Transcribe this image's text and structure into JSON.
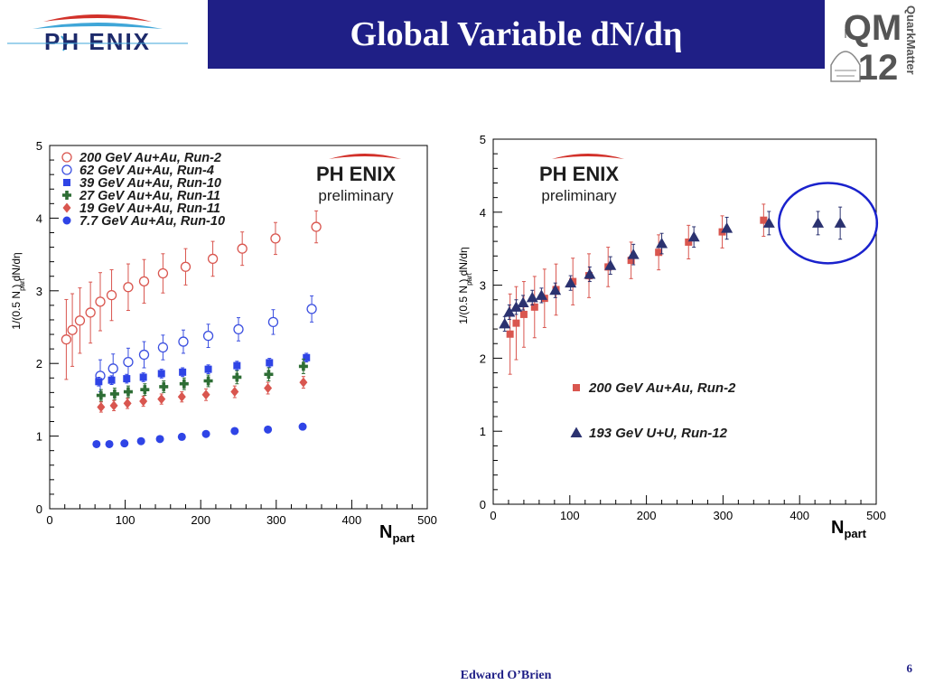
{
  "slide": {
    "title": "Global Variable dN/dη",
    "author": "Edward O’Brien",
    "page": "6"
  },
  "logos": {
    "left": {
      "text": "PH ENIX",
      "icon": "phenix-firebird-icon"
    },
    "right": {
      "line1": "QM",
      "line2": "12",
      "vertical": "QuarkMatter",
      "icon": "capitol-dome-icon"
    }
  },
  "colors": {
    "title_bg": "#1f1f86",
    "circle_highlight": "#1a22cc"
  },
  "chart_data": [
    {
      "type": "scatter",
      "xlabel_main": "N",
      "xlabel_sub": "part",
      "ylabel": "1/(0.5 N   ) dN/dη",
      "ylabel_sub": "part",
      "xlim": [
        0,
        500
      ],
      "ylim": [
        0,
        5
      ],
      "xticks": [
        "0",
        "100",
        "200",
        "300",
        "400",
        "500"
      ],
      "yticks": [
        "0",
        "1",
        "2",
        "3",
        "4",
        "5"
      ],
      "grid": false,
      "legend_position": "top-left",
      "watermark": {
        "line1": "PH ENIX",
        "line2": "preliminary"
      },
      "series": [
        {
          "name": "200 GeV Au+Au, Run-2",
          "marker": "open-circle",
          "color": "#d9564f",
          "x": [
            22,
            30,
            40,
            54,
            67,
            82,
            104,
            125,
            150,
            180,
            216,
            255,
            299,
            353
          ],
          "y": [
            2.33,
            2.46,
            2.59,
            2.7,
            2.85,
            2.94,
            3.05,
            3.13,
            3.24,
            3.33,
            3.44,
            3.58,
            3.72,
            3.88
          ],
          "err": [
            0.55,
            0.5,
            0.45,
            0.42,
            0.4,
            0.35,
            0.32,
            0.3,
            0.27,
            0.25,
            0.24,
            0.23,
            0.22,
            0.22
          ]
        },
        {
          "name": "62 GeV Au+Au, Run-4",
          "marker": "open-circle",
          "color": "#3b4fe0",
          "x": [
            67,
            84,
            104,
            125,
            150,
            177,
            210,
            250,
            296,
            347
          ],
          "y": [
            1.83,
            1.93,
            2.02,
            2.12,
            2.22,
            2.3,
            2.38,
            2.47,
            2.57,
            2.75
          ],
          "err": [
            0.22,
            0.2,
            0.19,
            0.18,
            0.17,
            0.16,
            0.16,
            0.16,
            0.17,
            0.18
          ]
        },
        {
          "name": "39 GeV Au+Au, Run-10",
          "marker": "square",
          "color": "#2f44e6",
          "x": [
            65,
            82,
            102,
            124,
            148,
            176,
            210,
            248,
            291,
            340
          ],
          "y": [
            1.75,
            1.77,
            1.79,
            1.81,
            1.86,
            1.88,
            1.92,
            1.97,
            2.01,
            2.08
          ],
          "err": [
            0.06,
            0.06,
            0.06,
            0.06,
            0.06,
            0.06,
            0.06,
            0.06,
            0.06,
            0.06
          ]
        },
        {
          "name": "27 GeV Au+Au, Run-11",
          "marker": "plus",
          "color": "#2e6e35",
          "x": [
            68,
            86,
            104,
            126,
            151,
            178,
            210,
            248,
            290,
            336
          ],
          "y": [
            1.56,
            1.58,
            1.61,
            1.64,
            1.68,
            1.72,
            1.76,
            1.81,
            1.85,
            1.96
          ],
          "err": [
            0.08,
            0.08,
            0.08,
            0.08,
            0.08,
            0.08,
            0.08,
            0.09,
            0.09,
            0.1
          ]
        },
        {
          "name": "19 GeV Au+Au, Run-11",
          "marker": "diamond",
          "color": "#d9564f",
          "x": [
            68,
            85,
            103,
            124,
            148,
            175,
            207,
            245,
            289,
            336
          ],
          "y": [
            1.4,
            1.42,
            1.45,
            1.48,
            1.51,
            1.54,
            1.57,
            1.61,
            1.66,
            1.74
          ],
          "err": [
            0.07,
            0.07,
            0.07,
            0.07,
            0.07,
            0.07,
            0.08,
            0.08,
            0.08,
            0.08
          ]
        },
        {
          "name": "7.7 GeV Au+Au, Run-10",
          "marker": "filled-circle",
          "color": "#2f44e6",
          "x": [
            62,
            79,
            99,
            121,
            146,
            175,
            207,
            245,
            289,
            335
          ],
          "y": [
            0.89,
            0.89,
            0.9,
            0.93,
            0.96,
            0.99,
            1.03,
            1.07,
            1.09,
            1.13
          ],
          "err": [
            0.03,
            0.03,
            0.03,
            0.03,
            0.03,
            0.03,
            0.03,
            0.04,
            0.04,
            0.04
          ]
        }
      ]
    },
    {
      "type": "scatter",
      "xlabel_main": "N",
      "xlabel_sub": "part",
      "ylabel": "1/(0.5 N   ) dN/dη",
      "ylabel_sub": "part",
      "xlim": [
        0,
        500
      ],
      "ylim": [
        0,
        5
      ],
      "xticks": [
        "0",
        "100",
        "200",
        "300",
        "400",
        "500"
      ],
      "yticks": [
        "0",
        "1",
        "2",
        "3",
        "4",
        "5"
      ],
      "grid": false,
      "legend_position": "bottom-center",
      "watermark": {
        "line1": "PH ENIX",
        "line2": "preliminary"
      },
      "highlight": {
        "shape": "ellipse",
        "cx": 437,
        "cy": 3.85,
        "rx": 64,
        "ry": 0.55
      },
      "series": [
        {
          "name": "200 GeV Au+Au, Run-2",
          "marker": "square",
          "color": "#d9564f",
          "x": [
            22,
            30,
            40,
            54,
            67,
            82,
            104,
            125,
            150,
            180,
            216,
            255,
            299,
            353
          ],
          "y": [
            2.33,
            2.48,
            2.6,
            2.7,
            2.82,
            2.94,
            3.05,
            3.13,
            3.25,
            3.34,
            3.45,
            3.59,
            3.73,
            3.89
          ],
          "err": [
            0.55,
            0.5,
            0.45,
            0.42,
            0.4,
            0.35,
            0.32,
            0.3,
            0.27,
            0.25,
            0.24,
            0.23,
            0.22,
            0.22
          ]
        },
        {
          "name": "193 GeV U+U, Run-12",
          "marker": "triangle",
          "color": "#2b3270",
          "x": [
            15,
            21,
            30,
            39,
            51,
            63,
            81,
            101,
            126,
            153,
            183,
            220,
            262,
            305,
            360,
            424,
            453
          ],
          "y": [
            2.47,
            2.63,
            2.7,
            2.76,
            2.83,
            2.86,
            2.93,
            3.03,
            3.15,
            3.27,
            3.42,
            3.57,
            3.66,
            3.78,
            3.85,
            3.85,
            3.85
          ],
          "err": [
            0.1,
            0.1,
            0.1,
            0.1,
            0.1,
            0.1,
            0.1,
            0.1,
            0.1,
            0.12,
            0.14,
            0.14,
            0.14,
            0.15,
            0.16,
            0.16,
            0.22
          ]
        }
      ]
    }
  ]
}
